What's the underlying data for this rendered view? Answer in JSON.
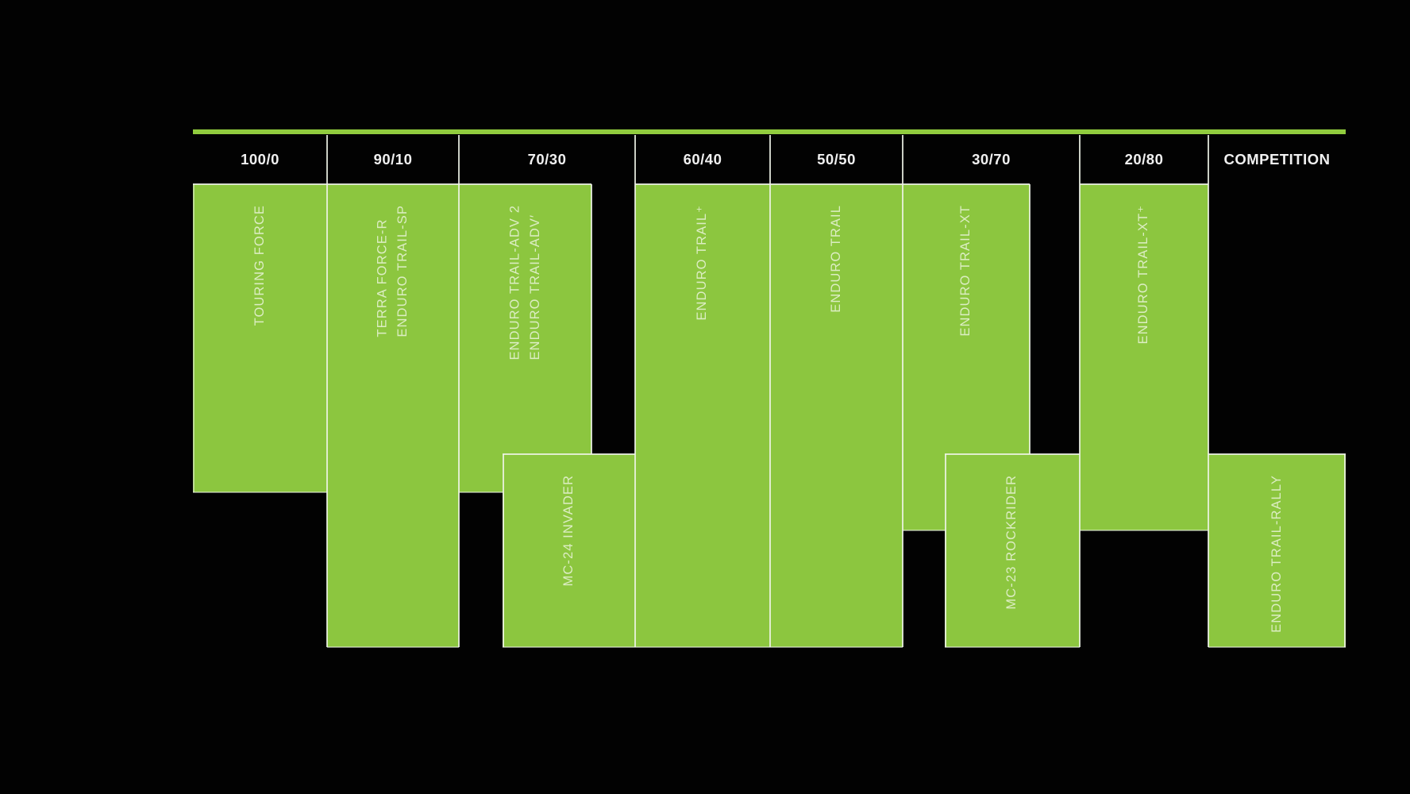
{
  "header": {
    "columns": [
      {
        "label": "100/0"
      },
      {
        "label": "90/10"
      },
      {
        "label": "70/30"
      },
      {
        "label": "60/40"
      },
      {
        "label": "50/50"
      },
      {
        "label": "30/70"
      },
      {
        "label": "20/80"
      },
      {
        "label": "COMPETITION"
      }
    ]
  },
  "blocks": {
    "touring": {
      "lines": [
        "TOURING FORCE"
      ]
    },
    "terra": {
      "lines": [
        "TERRA FORCE-R",
        "ENDURO TRAIL-SP"
      ]
    },
    "adv": {
      "lines": [
        "ENDURO TRAIL-ADV 2",
        "ENDURO TRAIL-ADV′"
      ]
    },
    "mc24": {
      "lines": [
        "MC-24 INVADER"
      ]
    },
    "trail_plus": {
      "lines": [
        "ENDURO TRAIL⁺"
      ]
    },
    "trail": {
      "lines": [
        "ENDURO TRAIL"
      ]
    },
    "xt": {
      "lines": [
        "ENDURO TRAIL-XT"
      ]
    },
    "mc23": {
      "lines": [
        "MC-23 ROCKRIDER"
      ]
    },
    "xt_plus": {
      "lines": [
        "ENDURO TRAIL-XT⁺"
      ]
    },
    "rally": {
      "lines": [
        "ENDURO TRAIL-RALLY"
      ]
    }
  },
  "colors": {
    "block_green": "#8CC63F",
    "rule_green": "#91CC3E",
    "label_on_green": "#DCEDC3",
    "header_text": "#F0F0F0",
    "separator_white": "#EEF3E8",
    "background": "#020202"
  },
  "chart_data": {
    "type": "table",
    "title": "",
    "categories": [
      "100/0",
      "90/10",
      "70/30",
      "60/40",
      "50/50",
      "30/70",
      "20/80",
      "COMPETITION"
    ],
    "series": [
      {
        "name": "TOURING FORCE",
        "category": "100/0",
        "band": "upper"
      },
      {
        "name": "TERRA FORCE-R",
        "category": "90/10",
        "band": "full"
      },
      {
        "name": "ENDURO TRAIL-SP",
        "category": "90/10",
        "band": "full"
      },
      {
        "name": "ENDURO TRAIL-ADV 2",
        "category": "70/30",
        "band": "upper"
      },
      {
        "name": "ENDURO TRAIL-ADV′",
        "category": "70/30",
        "band": "upper"
      },
      {
        "name": "MC-24 INVADER",
        "category": "70/30",
        "band": "lower"
      },
      {
        "name": "ENDURO TRAIL⁺",
        "category": "60/40",
        "band": "full"
      },
      {
        "name": "ENDURO TRAIL",
        "category": "50/50",
        "band": "full"
      },
      {
        "name": "ENDURO TRAIL-XT",
        "category": "30/70",
        "band": "upper"
      },
      {
        "name": "MC-23 ROCKRIDER",
        "category": "30/70",
        "band": "lower"
      },
      {
        "name": "ENDURO TRAIL-XT⁺",
        "category": "20/80",
        "band": "upper"
      },
      {
        "name": "ENDURO TRAIL-RALLY",
        "category": "COMPETITION",
        "band": "lower"
      }
    ],
    "legend_position": "none",
    "grid": "column-separators"
  }
}
